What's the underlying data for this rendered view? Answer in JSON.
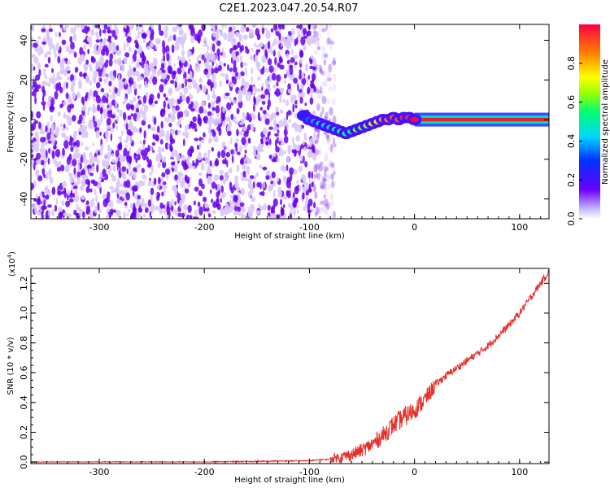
{
  "title": "C2E1.2023.047.20.54.R07",
  "colors": {
    "spectrum_background": "#ffffff",
    "noise_purple": "#6a00f0",
    "noise_light": "#d9c8fb",
    "snr_line": "#e8302a",
    "spectrum_core": "#e8242a"
  },
  "chart_data": [
    {
      "type": "heatmap",
      "name": "spectrogram",
      "xlabel": "Height of straight line (km)",
      "ylabel": "Frequency (Hz)",
      "xlim": [
        -365,
        128
      ],
      "ylim": [
        -50,
        48
      ],
      "xticks": [
        -300,
        -200,
        -100,
        0,
        100
      ],
      "xtick_labels": [
        "-300",
        "-200",
        "-100",
        "0",
        "100"
      ],
      "yticks": [
        -40,
        -20,
        0,
        20,
        40
      ],
      "ytick_labels": [
        "-40",
        "-20",
        "0",
        "20",
        "40"
      ],
      "noise_region_x": [
        -365,
        -95
      ],
      "signal_trace": {
        "x": [
          -105,
          -100,
          -95,
          -90,
          -85,
          -80,
          -75,
          -70,
          -65,
          -60,
          -55,
          -50,
          -45,
          -40,
          -35,
          -30,
          -25,
          -20,
          -15,
          -10,
          -5,
          0,
          20,
          40,
          60,
          80,
          100,
          128
        ],
        "frequency": [
          2,
          0,
          -1,
          -2,
          -3,
          -4,
          -5,
          -6,
          -7,
          -6,
          -5,
          -4,
          -3,
          -2,
          -1,
          0,
          0,
          1,
          0,
          1,
          1,
          0,
          0,
          0,
          0,
          0,
          0,
          0
        ],
        "amplitude": [
          0.3,
          0.35,
          0.4,
          0.45,
          0.45,
          0.5,
          0.5,
          0.55,
          0.55,
          0.55,
          0.6,
          0.6,
          0.65,
          0.7,
          0.75,
          0.8,
          0.85,
          0.9,
          0.9,
          0.95,
          0.95,
          1.0,
          1.0,
          1.0,
          1.0,
          1.0,
          1.0,
          1.0
        ]
      },
      "colorbar": {
        "label": "Normalized spectral amplitude",
        "range": [
          0,
          1
        ],
        "ticks": [
          0.0,
          0.2,
          0.4,
          0.6,
          0.8
        ],
        "tick_labels": [
          "0.0",
          "0.2",
          "0.4",
          "0.6",
          "0.8"
        ]
      },
      "grid": false
    },
    {
      "type": "line",
      "name": "snr",
      "xlabel": "Height of straight line (km)",
      "ylabel": "SNR (10 * v/v)",
      "scale_label": "(x10",
      "scale_exp": "4",
      "scale_close": ")",
      "xlim": [
        -365,
        128
      ],
      "ylim": [
        -0.01,
        1.3
      ],
      "xticks": [
        -300,
        -200,
        -100,
        0,
        100
      ],
      "xtick_labels": [
        "-300",
        "-200",
        "-100",
        "0",
        "100"
      ],
      "yticks": [
        0.0,
        0.2,
        0.4,
        0.6,
        0.8,
        1.0,
        1.2
      ],
      "ytick_labels": [
        "0.0",
        "0.2",
        "0.4",
        "0.6",
        "0.8",
        "1.0",
        "1.2"
      ],
      "x": [
        -365,
        -300,
        -200,
        -150,
        -100,
        -80,
        -60,
        -50,
        -40,
        -30,
        -20,
        -10,
        0,
        10,
        20,
        30,
        40,
        50,
        60,
        70,
        80,
        90,
        100,
        110,
        120,
        128
      ],
      "y": [
        0.0,
        0.0,
        0.0,
        0.005,
        0.01,
        0.02,
        0.05,
        0.08,
        0.12,
        0.18,
        0.25,
        0.3,
        0.35,
        0.42,
        0.52,
        0.58,
        0.63,
        0.68,
        0.73,
        0.78,
        0.85,
        0.92,
        1.0,
        1.1,
        1.2,
        1.28
      ],
      "grid": false
    }
  ]
}
